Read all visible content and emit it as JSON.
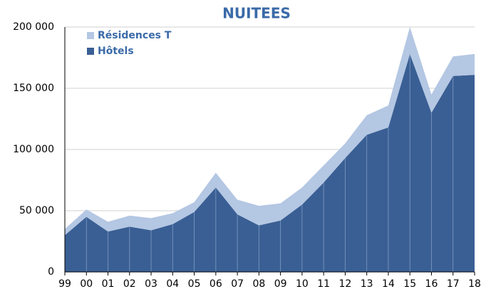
{
  "chart_data": {
    "type": "stacked_area",
    "title": "NUITEES",
    "categories": [
      "99",
      "00",
      "01",
      "02",
      "03",
      "04",
      "05",
      "06",
      "07",
      "08",
      "09",
      "10",
      "11",
      "12",
      "13",
      "14",
      "15",
      "16",
      "17",
      "18"
    ],
    "series": [
      {
        "name": "Hôtels",
        "color": "#3a5f94",
        "values": [
          30000,
          45000,
          33000,
          37000,
          34000,
          39000,
          49000,
          69000,
          47000,
          38000,
          42000,
          55000,
          73000,
          93000,
          112000,
          118000,
          178000,
          130000,
          160000,
          161000
        ]
      },
      {
        "name": "Résidences T",
        "color": "#b4c7e3",
        "values": [
          5000,
          6000,
          8000,
          9000,
          10000,
          9000,
          8000,
          12000,
          12000,
          16000,
          14000,
          14000,
          14000,
          12000,
          16000,
          18000,
          22000,
          15000,
          16000,
          17000
        ]
      }
    ],
    "ylim": [
      0,
      200000
    ],
    "yticks": [
      0,
      {
        "value": 50000,
        "label": "50 000"
      },
      {
        "value": 100000,
        "label": "100 000"
      },
      {
        "value": 150000,
        "label": "150 000"
      },
      {
        "value": 200000,
        "label": "200 000"
      }
    ],
    "grid": true,
    "legend": "upper left"
  }
}
